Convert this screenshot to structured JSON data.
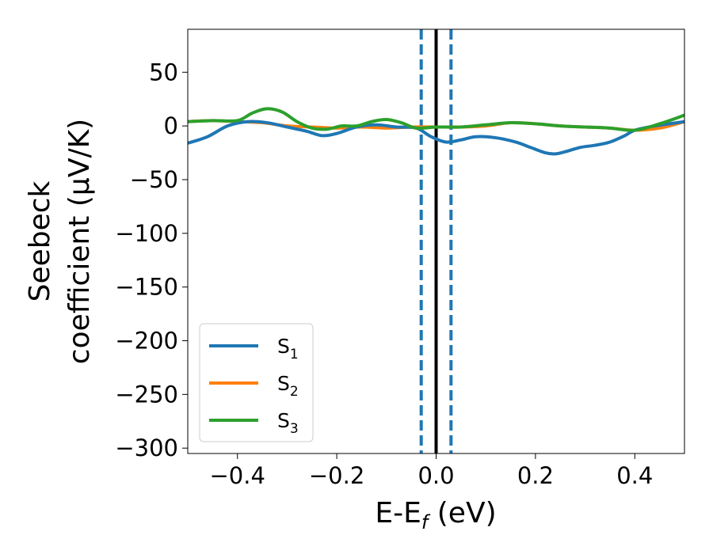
{
  "chart_data": {
    "type": "line",
    "title": "",
    "xlabel": "E-E",
    "xlabel_sub": "f",
    "xlabel_unit": " (eV)",
    "ylabel_line1": "Seebeck",
    "ylabel_line2": "coefficient  (μV/K)",
    "xlim": [
      -0.5,
      0.5
    ],
    "ylim": [
      -305,
      90
    ],
    "xticks": [
      -0.4,
      -0.2,
      0.0,
      0.2,
      0.4
    ],
    "xtick_labels": [
      "−0.4",
      "−0.2",
      "0.0",
      "0.2",
      "0.4"
    ],
    "yticks": [
      50,
      0,
      -50,
      -100,
      -150,
      -200,
      -250,
      -300
    ],
    "ytick_labels": [
      "50",
      "0",
      "−50",
      "−100",
      "−150",
      "−200",
      "−250",
      "−300"
    ],
    "grid": false,
    "legend_position": "lower-left",
    "vertical_lines": [
      {
        "x": -0.03,
        "style": "dashed",
        "color": "#1f77b4"
      },
      {
        "x": 0.0,
        "style": "solid",
        "color": "#000000"
      },
      {
        "x": 0.03,
        "style": "dashed",
        "color": "#1f77b4"
      }
    ],
    "series": [
      {
        "name": "S",
        "name_sub": "1",
        "color": "#1f77b4",
        "x": [
          -0.5,
          -0.46,
          -0.42,
          -0.38,
          -0.34,
          -0.3,
          -0.26,
          -0.23,
          -0.2,
          -0.16,
          -0.12,
          -0.08,
          -0.04,
          -0.01,
          0.02,
          0.05,
          0.08,
          0.12,
          0.16,
          0.19,
          0.22,
          0.24,
          0.26,
          0.29,
          0.32,
          0.35,
          0.38,
          0.4,
          0.44,
          0.47,
          0.5
        ],
        "y": [
          -16,
          -10,
          0,
          4,
          3,
          -1,
          -5,
          -9,
          -7,
          -1,
          1,
          -1,
          -2,
          -10,
          -15,
          -13,
          -10,
          -11,
          -15,
          -20,
          -25,
          -26,
          -24,
          -20,
          -18,
          -15,
          -9,
          -4,
          0,
          2,
          4
        ]
      },
      {
        "name": "S",
        "name_sub": "2",
        "color": "#ff7f0e",
        "x": [
          -0.5,
          -0.45,
          -0.4,
          -0.35,
          -0.3,
          -0.25,
          -0.2,
          -0.15,
          -0.1,
          -0.05,
          0.0,
          0.05,
          0.1,
          0.15,
          0.2,
          0.25,
          0.3,
          0.35,
          0.4,
          0.45,
          0.5
        ],
        "y": [
          4,
          5,
          4,
          3,
          0,
          -1,
          -2,
          -1,
          -2,
          -1,
          -1,
          -1,
          0,
          3,
          2,
          0,
          -1,
          -2,
          -4,
          -2,
          4
        ]
      },
      {
        "name": "S",
        "name_sub": "3",
        "color": "#2ca02c",
        "x": [
          -0.5,
          -0.45,
          -0.4,
          -0.37,
          -0.34,
          -0.31,
          -0.28,
          -0.25,
          -0.22,
          -0.19,
          -0.16,
          -0.13,
          -0.1,
          -0.07,
          -0.04,
          0.0,
          0.05,
          0.1,
          0.15,
          0.2,
          0.25,
          0.3,
          0.35,
          0.4,
          0.45,
          0.5
        ],
        "y": [
          4,
          5,
          5,
          12,
          16,
          13,
          4,
          -2,
          -3,
          0,
          0,
          4,
          6,
          3,
          -2,
          -1,
          -1,
          1,
          3,
          2,
          0,
          -1,
          -2,
          -4,
          2,
          10
        ]
      }
    ]
  }
}
